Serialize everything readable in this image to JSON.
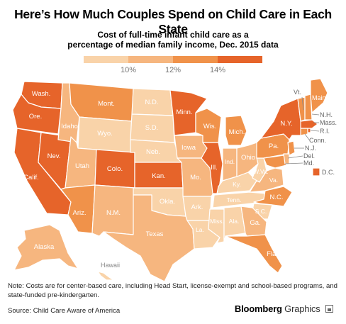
{
  "title": "Here’s How Much Couples Spend on Child Care in Each State",
  "subtitle_line1": "Cost of full-time infant child care as a",
  "subtitle_line2": "percentage of median family income, Dec. 2015 data",
  "legend": {
    "colors": [
      "#f9d3a9",
      "#f6b67f",
      "#f0924a",
      "#e6642a"
    ],
    "labels": [
      "10%",
      "12%",
      "14%"
    ]
  },
  "states": [
    {
      "abbr": "Wash.",
      "tier": 3
    },
    {
      "abbr": "Ore.",
      "tier": 3
    },
    {
      "abbr": "Calif.",
      "tier": 3
    },
    {
      "abbr": "Nev.",
      "tier": 3
    },
    {
      "abbr": "Idaho",
      "tier": 1
    },
    {
      "abbr": "Mont.",
      "tier": 2
    },
    {
      "abbr": "Wyo.",
      "tier": 0
    },
    {
      "abbr": "Utah",
      "tier": 1
    },
    {
      "abbr": "Ariz.",
      "tier": 2
    },
    {
      "abbr": "Colo.",
      "tier": 3
    },
    {
      "abbr": "N.M.",
      "tier": 1
    },
    {
      "abbr": "N.D.",
      "tier": 0
    },
    {
      "abbr": "S.D.",
      "tier": 0
    },
    {
      "abbr": "Neb.",
      "tier": 0
    },
    {
      "abbr": "Kan.",
      "tier": 3
    },
    {
      "abbr": "Okla.",
      "tier": 0
    },
    {
      "abbr": "Texas",
      "tier": 1
    },
    {
      "abbr": "Minn.",
      "tier": 3
    },
    {
      "abbr": "Iowa",
      "tier": 1
    },
    {
      "abbr": "Mo.",
      "tier": 1
    },
    {
      "abbr": "Ark.",
      "tier": 0
    },
    {
      "abbr": "La.",
      "tier": 0
    },
    {
      "abbr": "Wis.",
      "tier": 2
    },
    {
      "abbr": "Ill.",
      "tier": 3
    },
    {
      "abbr": "Miss.",
      "tier": 0
    },
    {
      "abbr": "Mich.",
      "tier": 2
    },
    {
      "abbr": "Ind.",
      "tier": 1
    },
    {
      "abbr": "Ky.",
      "tier": 0
    },
    {
      "abbr": "Tenn.",
      "tier": 0
    },
    {
      "abbr": "Ala.",
      "tier": 0
    },
    {
      "abbr": "Ohio",
      "tier": 1
    },
    {
      "abbr": "W.Va.",
      "tier": 0
    },
    {
      "abbr": "Va.",
      "tier": 1
    },
    {
      "abbr": "N.C.",
      "tier": 2
    },
    {
      "abbr": "S.C.",
      "tier": 0
    },
    {
      "abbr": "Ga.",
      "tier": 1
    },
    {
      "abbr": "Fla.",
      "tier": 2
    },
    {
      "abbr": "Pa.",
      "tier": 2
    },
    {
      "abbr": "N.Y.",
      "tier": 3
    },
    {
      "abbr": "Md.",
      "tier": 2
    },
    {
      "abbr": "Del.",
      "tier": 1
    },
    {
      "abbr": "N.J.",
      "tier": 2
    },
    {
      "abbr": "Conn.",
      "tier": 2
    },
    {
      "abbr": "R.I.",
      "tier": 3
    },
    {
      "abbr": "Mass.",
      "tier": 3
    },
    {
      "abbr": "Vt.",
      "tier": 2
    },
    {
      "abbr": "N.H.",
      "tier": 2
    },
    {
      "abbr": "Maine",
      "tier": 2
    },
    {
      "abbr": "Alaska",
      "tier": 1
    },
    {
      "abbr": "Hawaii",
      "tier": 0
    },
    {
      "abbr": "D.C.",
      "tier": 3
    }
  ],
  "note": "Note: Costs are for center-based care, including Head Start, license-exempt and school-based programs, and state-funded pre-kindergarten.",
  "source": "Source: Child Care Aware of America",
  "brand_name": "Bloomberg",
  "brand_suffix": "Graphics"
}
